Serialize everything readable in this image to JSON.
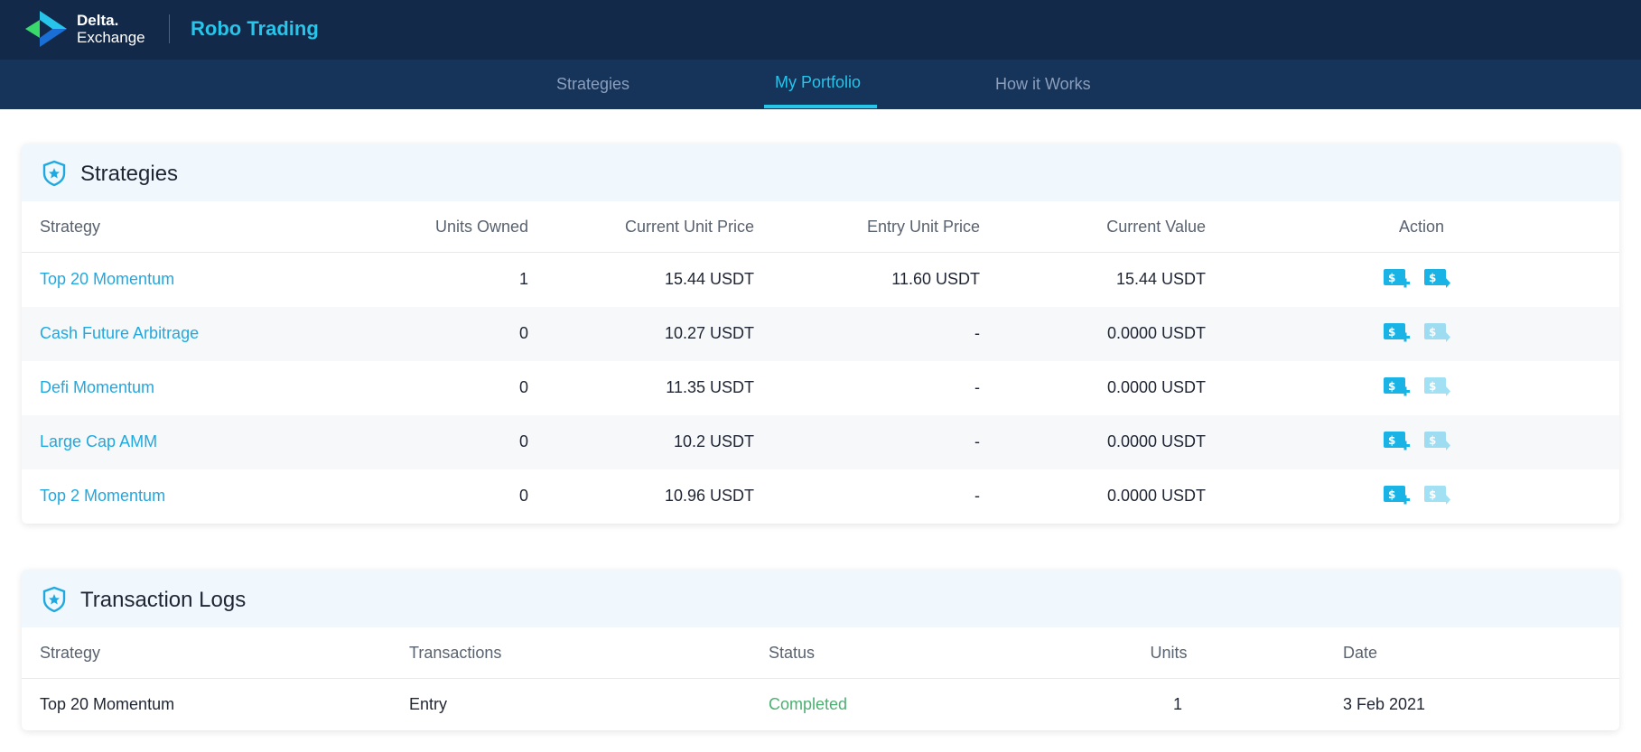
{
  "app": {
    "logo_line1": "Delta.",
    "logo_line2": "Exchange",
    "brand": "Robo Trading"
  },
  "nav": {
    "tabs": [
      {
        "label": "Strategies"
      },
      {
        "label": "My Portfolio",
        "active": true
      },
      {
        "label": "How it Works"
      }
    ]
  },
  "strategies": {
    "title": "Strategies",
    "headers": [
      "Strategy",
      "Units Owned",
      "Current Unit Price",
      "Entry Unit Price",
      "Current Value",
      "Action"
    ],
    "rows": [
      {
        "name": "Top 20 Momentum",
        "units": "1",
        "current_price": "15.44 USDT",
        "entry_price": "11.60 USDT",
        "current_value": "15.44 USDT",
        "withdraw_enabled": true
      },
      {
        "name": "Cash Future Arbitrage",
        "units": "0",
        "current_price": "10.27 USDT",
        "entry_price": "-",
        "current_value": "0.0000 USDT",
        "withdraw_enabled": false
      },
      {
        "name": "Defi Momentum",
        "units": "0",
        "current_price": "11.35 USDT",
        "entry_price": "-",
        "current_value": "0.0000 USDT",
        "withdraw_enabled": false
      },
      {
        "name": "Large Cap AMM",
        "units": "0",
        "current_price": "10.2 USDT",
        "entry_price": "-",
        "current_value": "0.0000 USDT",
        "withdraw_enabled": false
      },
      {
        "name": "Top 2 Momentum",
        "units": "0",
        "current_price": "10.96 USDT",
        "entry_price": "-",
        "current_value": "0.0000 USDT",
        "withdraw_enabled": false
      }
    ]
  },
  "transactions": {
    "title": "Transaction Logs",
    "headers": [
      "Strategy",
      "Transactions",
      "Status",
      "Units",
      "Date"
    ],
    "rows": [
      {
        "strategy": "Top 20 Momentum",
        "transaction": "Entry",
        "status": "Completed",
        "units": "1",
        "date": "3 Feb 2021"
      }
    ]
  },
  "icons": {
    "logo": "delta-exchange-logo",
    "section": "shield-star-icon",
    "invest": "dollar-plus-icon",
    "withdraw": "dollar-arrow-icon"
  },
  "colors": {
    "topbar": "#13294a",
    "navbar": "#163359",
    "accent": "#27c5ea",
    "link": "#20a9e0",
    "success": "#4caf72"
  }
}
